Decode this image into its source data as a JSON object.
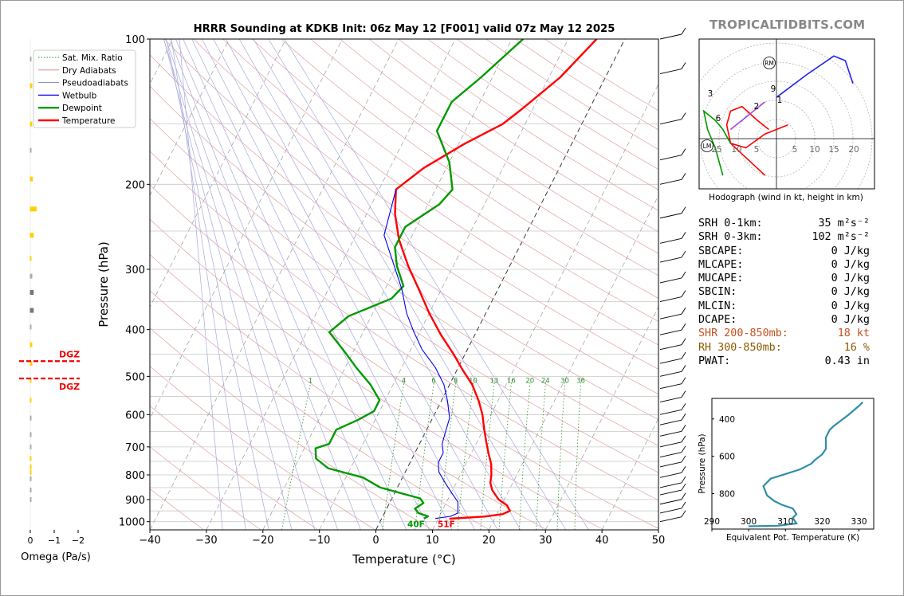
{
  "site_label": "TROPICALTIDBITS.COM",
  "chart_data": [
    {
      "type": "line",
      "title": "HRRR Sounding at KDKB Init: 06z May 12 [F001] valid 07z May 12 2025",
      "xlabel": "Temperature (°C)",
      "ylabel": "Pressure (hPa)",
      "xlim": [
        -40,
        50
      ],
      "ylim": [
        1040,
        100
      ],
      "y_scale": "log",
      "x_ticks": [
        -40,
        -30,
        -20,
        -10,
        0,
        10,
        20,
        30,
        40,
        50
      ],
      "x_tick_labels": [
        "−40",
        "−30",
        "−20",
        "−10",
        "0",
        "10",
        "20",
        "30",
        "40",
        "50"
      ],
      "y_ticks": [
        100,
        200,
        300,
        400,
        500,
        600,
        700,
        800,
        900,
        1000
      ],
      "grid": true,
      "skew": "skew-T",
      "legend": {
        "placement": "top-left (outside)",
        "entries": [
          {
            "label": "Sat. Mix. Ratio",
            "color": "#2a8c2a",
            "style": "dotted"
          },
          {
            "label": "Dry Adiabats",
            "color": "#d08080",
            "style": "solid-thin"
          },
          {
            "label": "Pseudoadiabats",
            "color": "#8080c0",
            "style": "solid-thin"
          },
          {
            "label": "Wetbulb",
            "color": "#0000ee",
            "style": "solid"
          },
          {
            "label": "Dewpoint",
            "color": "#009900",
            "style": "solid-thick"
          },
          {
            "label": "Temperature",
            "color": "#ff0000",
            "style": "solid-thick"
          }
        ]
      },
      "series": [
        {
          "name": "Temperature",
          "color": "#ff0000",
          "points": [
            [
              12,
              986
            ],
            [
              18,
              976
            ],
            [
              21,
              965
            ],
            [
              22,
              950
            ],
            [
              21,
              925
            ],
            [
              19,
              900
            ],
            [
              17,
              860
            ],
            [
              16,
              830
            ],
            [
              15.5,
              800
            ],
            [
              14.5,
              760
            ],
            [
              13,
              720
            ],
            [
              11.5,
              680
            ],
            [
              10,
              640
            ],
            [
              8.5,
              600
            ],
            [
              6.5,
              560
            ],
            [
              4,
              520
            ],
            [
              1,
              485
            ],
            [
              -2,
              450
            ],
            [
              -6,
              410
            ],
            [
              -10,
              370
            ],
            [
              -14,
              330
            ],
            [
              -18,
              295
            ],
            [
              -22,
              260
            ],
            [
              -25,
              230
            ],
            [
              -27,
              205
            ],
            [
              -24,
              185
            ],
            [
              -19,
              165
            ],
            [
              -14,
              150
            ],
            [
              -12,
              140
            ],
            [
              -8,
              120
            ],
            [
              -5,
              100
            ]
          ]
        },
        {
          "name": "Dewpoint",
          "color": "#009900",
          "points": [
            [
              7.5,
              985
            ],
            [
              8,
              975
            ],
            [
              6,
              960
            ],
            [
              5,
              940
            ],
            [
              6,
              915
            ],
            [
              5,
              895
            ],
            [
              -3,
              850
            ],
            [
              -7,
              810
            ],
            [
              -14,
              775
            ],
            [
              -17,
              740
            ],
            [
              -18,
              705
            ],
            [
              -16,
              690
            ],
            [
              -16,
              670
            ],
            [
              -16,
              645
            ],
            [
              -13,
              615
            ],
            [
              -11,
              590
            ],
            [
              -11,
              560
            ],
            [
              -14,
              520
            ],
            [
              -18,
              480
            ],
            [
              -22,
              440
            ],
            [
              -26,
              405
            ],
            [
              -24,
              375
            ],
            [
              -18,
              345
            ],
            [
              -17,
              325
            ],
            [
              -20,
              295
            ],
            [
              -22,
              270
            ],
            [
              -22,
              245
            ],
            [
              -18,
              220
            ],
            [
              -17,
              205
            ],
            [
              -20,
              180
            ],
            [
              -25,
              155
            ],
            [
              -25,
              135
            ],
            [
              -22,
              120
            ],
            [
              -18,
              100
            ]
          ]
        },
        {
          "name": "Wetbulb",
          "color": "#0000ee",
          "points": [
            [
              9.5,
              985
            ],
            [
              12,
              975
            ],
            [
              13,
              960
            ],
            [
              12.5,
              935
            ],
            [
              12,
              910
            ],
            [
              10,
              870
            ],
            [
              8,
              830
            ],
            [
              6,
              790
            ],
            [
              5,
              755
            ],
            [
              5,
              720
            ],
            [
              4,
              690
            ],
            [
              3.5,
              650
            ],
            [
              3,
              610
            ],
            [
              1,
              560
            ],
            [
              -1,
              520
            ],
            [
              -4,
              480
            ],
            [
              -8,
              440
            ],
            [
              -11,
              405
            ],
            [
              -14,
              370
            ],
            [
              -17,
              330
            ],
            [
              -21,
              290
            ],
            [
              -25,
              255
            ],
            [
              -27,
              205
            ]
          ]
        }
      ],
      "annotations": [
        {
          "text": "40F",
          "color": "#009900"
        },
        {
          "text": "51F",
          "color": "#ff0000"
        }
      ],
      "mixing_ratio_labels": [
        "1",
        "4",
        "6",
        "8",
        "10",
        "13",
        "16",
        "20",
        "24",
        "30",
        "36"
      ]
    },
    {
      "type": "bar",
      "title": "Omega (Pa/s)",
      "xlabel": "Omega (Pa/s)",
      "x_tick_labels": [
        "0",
        "−1",
        "−2"
      ],
      "annotations": [
        "DGZ",
        "DGZ"
      ],
      "dgz_bounds_hpa": [
        465,
        505
      ],
      "levels_hpa": [
        110,
        125,
        150,
        170,
        195,
        225,
        255,
        285,
        310,
        335,
        365,
        395,
        430,
        470,
        510,
        560,
        610,
        660,
        700,
        740,
        770,
        790,
        815,
        860,
        900
      ],
      "values": [
        0.02,
        0.05,
        0.05,
        0.02,
        0.06,
        0.14,
        0.08,
        0.02,
        0.05,
        0.08,
        0.08,
        0.03,
        0.05,
        0.05,
        0.02,
        0.02,
        0.02,
        0.02,
        0.02,
        0.02,
        0.02,
        0.02,
        0.01,
        0.01,
        0.01
      ],
      "colors": [
        "#aaaaaa",
        "#ffd000",
        "#ffd000",
        "#aaaaaa",
        "#ffd000",
        "#ffd000",
        "#ffd000",
        "#ffd000",
        "#aaaaaa",
        "#777777",
        "#777777",
        "#aaaaaa",
        "#ffd000",
        "#ffd000",
        "#ffd000",
        "#ffd000",
        "#aaaaaa",
        "#aaaaaa",
        "#aaaaaa",
        "#ffd000",
        "#ffd000",
        "#ffd000",
        "#aaaaaa",
        "#aaaaaa",
        "#aaaaaa"
      ]
    },
    {
      "type": "line",
      "title": "Hodograph (wind in kt, height in km)",
      "xlabel": "Hodograph (wind in kt, height in km)",
      "rings_kt": [
        5,
        10,
        15,
        20,
        25
      ],
      "x_tick_labels": [
        "25",
        "10",
        "5",
        "5",
        "10",
        "15",
        "20"
      ],
      "series": [
        {
          "name": "0-1 km",
          "color": "#ff0000",
          "points": [
            [
              3,
              1.5
            ],
            [
              0,
              1
            ],
            [
              -3,
              0.5
            ],
            [
              -8,
              -1
            ],
            [
              -12,
              -0.5
            ]
          ]
        },
        {
          "name": "1-3 km",
          "color": "#ff0000",
          "points": [
            [
              -12,
              -0.5
            ],
            [
              -13,
              1.5
            ],
            [
              -12,
              3
            ],
            [
              -9,
              3.5
            ],
            [
              -5,
              2
            ],
            [
              -2,
              1
            ]
          ]
        },
        {
          "name": "3-6 km",
          "color": "#009900",
          "points": [
            [
              -12,
              -0.5
            ],
            [
              -14,
              1
            ],
            [
              -16,
              2
            ],
            [
              -19,
              3
            ],
            [
              -18,
              1
            ],
            [
              -16,
              -1
            ],
            [
              -14,
              -4
            ]
          ]
        },
        {
          "name": "6-9 km",
          "color": "#aa44cc",
          "points": [
            [
              -12,
              1
            ],
            [
              -9,
              2
            ],
            [
              -6,
              3
            ],
            [
              -3,
              4
            ]
          ]
        },
        {
          "name": "9-12 km",
          "color": "#2222ee",
          "points": [
            [
              0,
              4.5
            ],
            [
              8,
              7
            ],
            [
              15,
              9
            ],
            [
              18,
              8.5
            ],
            [
              20,
              6
            ]
          ]
        },
        {
          "name": "surface",
          "color": "#ff0000",
          "points": [
            [
              -12,
              -0.5
            ],
            [
              -3,
              -4
            ]
          ]
        }
      ],
      "height_labels": [
        "3",
        "9",
        "1",
        "2",
        "6"
      ],
      "markers": [
        "RM",
        "LM"
      ]
    },
    {
      "type": "line",
      "xlabel": "Equivalent Pot. Temperature (K)",
      "ylabel": "Pressure (hPa)",
      "xlim": [
        290,
        334
      ],
      "ylim": [
        990,
        290
      ],
      "x_ticks": [
        290,
        300,
        310,
        320,
        330
      ],
      "y_ticks": [
        400,
        600,
        800
      ],
      "series": [
        {
          "name": "Equivalent Pot. Temperature",
          "color": "#2f8ea8",
          "points": [
            [
              300,
              975
            ],
            [
              308,
              972
            ],
            [
              313,
              960
            ],
            [
              312,
              930
            ],
            [
              313,
              910
            ],
            [
              312,
              880
            ],
            [
              309,
              860
            ],
            [
              307,
              840
            ],
            [
              305,
              810
            ],
            [
              304,
              760
            ],
            [
              306,
              720
            ],
            [
              310,
              695
            ],
            [
              314,
              670
            ],
            [
              317,
              640
            ],
            [
              318,
              620
            ],
            [
              320,
              590
            ],
            [
              321,
              560
            ],
            [
              321,
              500
            ],
            [
              322,
              460
            ],
            [
              323,
              440
            ],
            [
              325,
              410
            ],
            [
              327,
              380
            ],
            [
              330,
              330
            ],
            [
              331,
              310
            ]
          ]
        }
      ]
    }
  ],
  "stats": [
    {
      "label": "SRH 0-1km:",
      "value": "35",
      "unit": "m²s⁻²",
      "color": "black"
    },
    {
      "label": "SRH 0-3km:",
      "value": "102",
      "unit": "m²s⁻²",
      "color": "black"
    },
    {
      "label": "SBCAPE:",
      "value": "0",
      "unit": "J/kg",
      "color": "black"
    },
    {
      "label": "MLCAPE:",
      "value": "0",
      "unit": "J/kg",
      "color": "black"
    },
    {
      "label": "MUCAPE:",
      "value": "0",
      "unit": "J/kg",
      "color": "black"
    },
    {
      "label": "SBCIN:",
      "value": "0",
      "unit": "J/kg",
      "color": "black"
    },
    {
      "label": "MLCIN:",
      "value": "0",
      "unit": "J/kg",
      "color": "black"
    },
    {
      "label": "DCAPE:",
      "value": "0",
      "unit": "J/kg",
      "color": "black"
    },
    {
      "label": "SHR 200-850mb:",
      "value": "18",
      "unit": "kt",
      "color": "orange"
    },
    {
      "label": "RH 300-850mb:",
      "value": "16",
      "unit": "%",
      "color": "brown"
    },
    {
      "label": "PWAT:",
      "value": "0.43",
      "unit": "in",
      "color": "black"
    }
  ]
}
